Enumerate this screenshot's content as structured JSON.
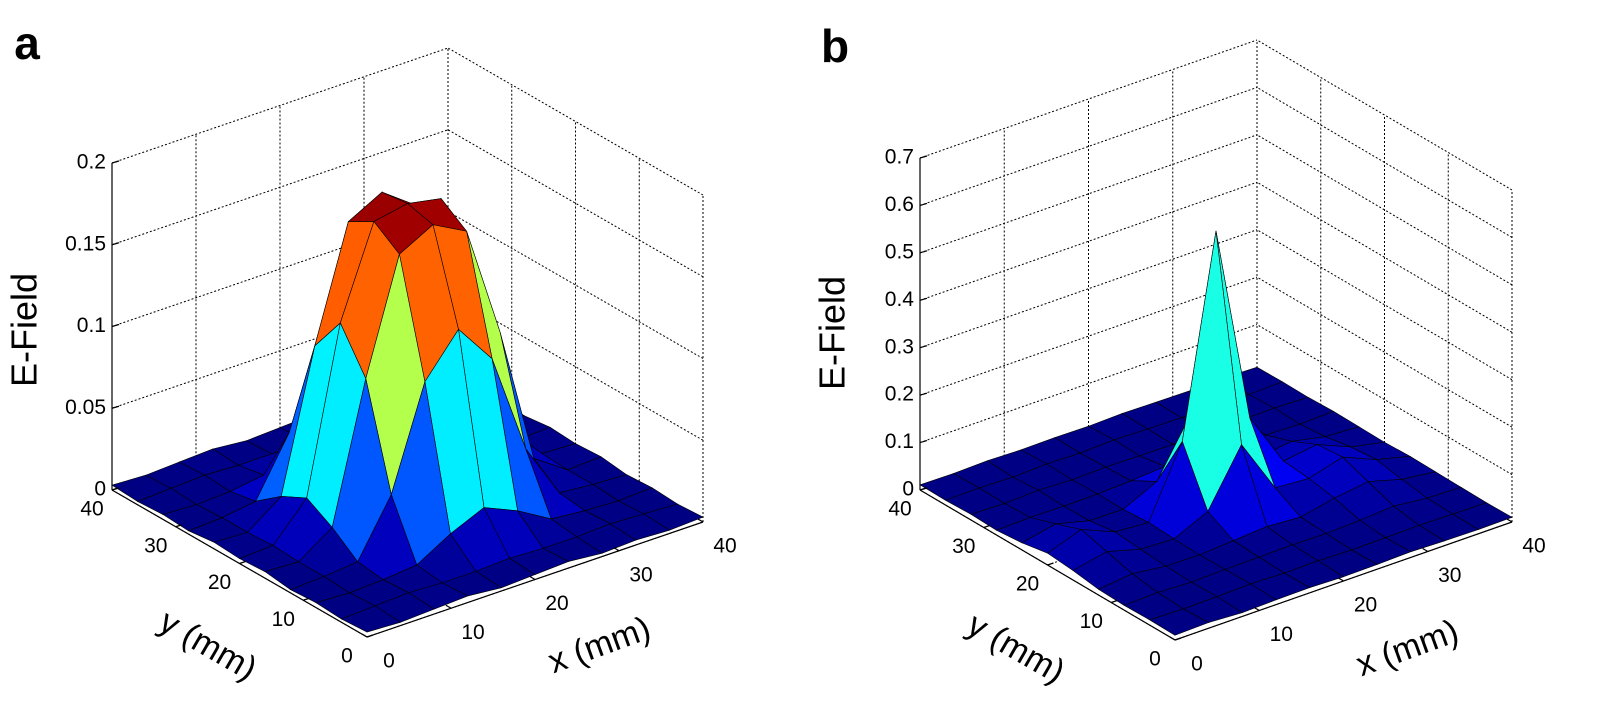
{
  "chart_data": [
    {
      "type": "surface3d",
      "panel": "a",
      "zlabel": "E-Field",
      "xlabel": "x (mm)",
      "ylabel": "y (mm)",
      "colormap": "jet",
      "xlim": [
        0,
        40
      ],
      "ylim": [
        0,
        40
      ],
      "zlim": [
        0,
        0.2
      ],
      "xticks": [
        0,
        10,
        20,
        30,
        40
      ],
      "yticks": [
        0,
        10,
        20,
        30,
        40
      ],
      "zticks": [
        0,
        0.05,
        0.1,
        0.15,
        0.2
      ],
      "x": [
        0,
        4,
        8,
        12,
        16,
        20,
        24,
        28,
        32,
        36,
        40
      ],
      "y": [
        0,
        4,
        8,
        12,
        16,
        20,
        24,
        28,
        32,
        36,
        40
      ],
      "z": [
        [
          0.003,
          0.002,
          0.003,
          0.004,
          0.002,
          0.003,
          0.004,
          0.002,
          0.003,
          0.002,
          0.003
        ],
        [
          0.002,
          0.003,
          0.004,
          0.003,
          0.003,
          0.004,
          0.003,
          0.003,
          0.004,
          0.003,
          0.002
        ],
        [
          0.003,
          0.002,
          0.003,
          0.005,
          0.017,
          0.026,
          0.017,
          0.005,
          0.003,
          0.002,
          0.003
        ],
        [
          0.002,
          0.003,
          0.005,
          0.039,
          0.101,
          0.126,
          0.101,
          0.039,
          0.005,
          0.003,
          0.002
        ],
        [
          0.004,
          0.003,
          0.017,
          0.101,
          0.17,
          0.181,
          0.17,
          0.101,
          0.017,
          0.003,
          0.004
        ],
        [
          0.003,
          0.004,
          0.026,
          0.126,
          0.181,
          0.185,
          0.181,
          0.126,
          0.026,
          0.004,
          0.003
        ],
        [
          0.004,
          0.003,
          0.018,
          0.103,
          0.172,
          0.183,
          0.168,
          0.1,
          0.016,
          0.003,
          0.004
        ],
        [
          0.002,
          0.003,
          0.006,
          0.041,
          0.104,
          0.128,
          0.099,
          0.037,
          0.005,
          0.003,
          0.002
        ],
        [
          0.003,
          0.002,
          0.003,
          0.006,
          0.018,
          0.027,
          0.016,
          0.005,
          0.003,
          0.002,
          0.003
        ],
        [
          0.002,
          0.003,
          0.004,
          0.003,
          0.003,
          0.004,
          0.003,
          0.003,
          0.004,
          0.003,
          0.002
        ],
        [
          0.003,
          0.002,
          0.003,
          0.004,
          0.002,
          0.003,
          0.004,
          0.002,
          0.003,
          0.002,
          0.003
        ]
      ]
    },
    {
      "type": "surface3d",
      "panel": "b",
      "zlabel": "E-Field",
      "xlabel": "x (mm)",
      "ylabel": "y (mm)",
      "colormap": "jet",
      "xlim": [
        0,
        40
      ],
      "ylim": [
        0,
        40
      ],
      "zlim": [
        0,
        0.7
      ],
      "xticks": [
        0,
        10,
        20,
        30,
        40
      ],
      "yticks": [
        0,
        10,
        20,
        30,
        40
      ],
      "zticks": [
        0,
        0.1,
        0.2,
        0.3,
        0.4,
        0.5,
        0.6,
        0.7
      ],
      "x": [
        0,
        4,
        8,
        12,
        16,
        20,
        24,
        28,
        32,
        36,
        40
      ],
      "y": [
        0,
        4,
        8,
        12,
        16,
        20,
        24,
        28,
        32,
        36,
        40
      ],
      "z": [
        [
          0.01,
          0.012,
          0.008,
          0.01,
          0.011,
          0.009,
          0.01,
          0.012,
          0.01,
          0.009,
          0.01
        ],
        [
          0.011,
          0.009,
          0.01,
          0.012,
          0.01,
          0.011,
          0.009,
          0.01,
          0.011,
          0.01,
          0.009
        ],
        [
          0.01,
          0.012,
          0.009,
          0.011,
          0.012,
          0.013,
          0.012,
          0.015,
          0.02,
          0.012,
          0.01
        ],
        [
          0.012,
          0.02,
          0.011,
          0.01,
          0.015,
          0.02,
          0.015,
          0.03,
          0.04,
          0.02,
          0.011
        ],
        [
          0.02,
          0.035,
          0.015,
          0.012,
          0.045,
          0.161,
          0.045,
          0.04,
          0.06,
          0.03,
          0.012
        ],
        [
          0.025,
          0.05,
          0.02,
          0.015,
          0.161,
          0.58,
          0.161,
          0.045,
          0.055,
          0.025,
          0.01
        ],
        [
          0.015,
          0.03,
          0.012,
          0.011,
          0.045,
          0.161,
          0.045,
          0.02,
          0.03,
          0.015,
          0.011
        ],
        [
          0.01,
          0.012,
          0.011,
          0.012,
          0.015,
          0.02,
          0.015,
          0.012,
          0.012,
          0.01,
          0.012
        ],
        [
          0.012,
          0.01,
          0.013,
          0.01,
          0.012,
          0.011,
          0.01,
          0.013,
          0.011,
          0.012,
          0.01
        ],
        [
          0.01,
          0.011,
          0.009,
          0.012,
          0.01,
          0.013,
          0.011,
          0.01,
          0.012,
          0.009,
          0.011
        ],
        [
          0.011,
          0.01,
          0.012,
          0.01,
          0.011,
          0.01,
          0.012,
          0.011,
          0.01,
          0.012,
          0.01
        ]
      ]
    }
  ]
}
